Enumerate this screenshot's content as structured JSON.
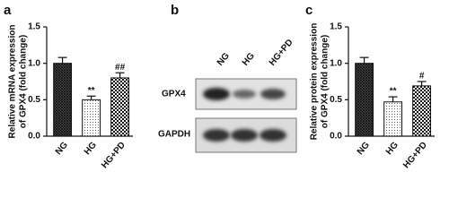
{
  "chart_data": [
    {
      "type": "bar",
      "panel": "a",
      "ylabel": [
        "Relative mRNA expression",
        "of GPX4 (fold change)"
      ],
      "categories": [
        "NG",
        "HG",
        "HG+PD"
      ],
      "values": [
        1.0,
        0.5,
        0.8
      ],
      "errors": [
        0.08,
        0.05,
        0.07
      ],
      "annotations": [
        null,
        "**",
        "##"
      ],
      "patterns": [
        "crosshatch",
        "dots",
        "checker"
      ],
      "ylim": [
        0,
        1.5
      ],
      "yticks": [
        {
          "value": 0,
          "label": "0.0"
        },
        {
          "value": 0.5,
          "label": "0.5"
        },
        {
          "value": 1,
          "label": "1.0"
        },
        {
          "value": 1.5,
          "label": "1.5"
        }
      ]
    },
    {
      "type": "bar",
      "panel": "c",
      "ylabel": [
        "Relative protein expression",
        "of GPX4 (fold change)"
      ],
      "categories": [
        "NG",
        "HG",
        "HG+PD"
      ],
      "values": [
        1.0,
        0.47,
        0.69
      ],
      "errors": [
        0.08,
        0.07,
        0.06
      ],
      "annotations": [
        null,
        "**",
        "#"
      ],
      "patterns": [
        "crosshatch",
        "dots",
        "checker"
      ],
      "ylim": [
        0,
        1.5
      ],
      "yticks": [
        {
          "value": 0,
          "label": "0.0"
        },
        {
          "value": 0.5,
          "label": "0.5"
        },
        {
          "value": 1,
          "label": "1.0"
        },
        {
          "value": 1.5,
          "label": "1.5"
        }
      ]
    }
  ],
  "blot": {
    "panel": "b",
    "lanes": [
      "NG",
      "HG",
      "HG+PD"
    ],
    "rows": [
      "GPX4",
      "GAPDH"
    ]
  }
}
